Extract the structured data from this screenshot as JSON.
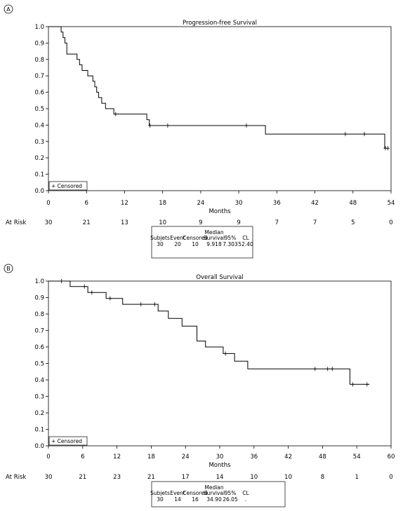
{
  "chart_data": [
    {
      "type": "line",
      "panel_label": "A",
      "title": "Progression-free Survival",
      "xlabel": "Months",
      "ylabel": "",
      "xlim": [
        0,
        54
      ],
      "ylim": [
        0,
        1
      ],
      "xticks": [
        "0",
        "6",
        "12",
        "18",
        "24",
        "30",
        "36",
        "42",
        "48",
        "54"
      ],
      "yticks": [
        "0.0",
        "0.1",
        "0.2",
        "0.3",
        "0.4",
        "0.5",
        "0.6",
        "0.7",
        "0.8",
        "0.9",
        "1.0"
      ],
      "legend": "+ Censored",
      "legend_position": "bottom-left",
      "series": [
        {
          "steps": [
            [
              0,
              1.0
            ],
            [
              2.0,
              0.967
            ],
            [
              2.3,
              0.933
            ],
            [
              2.6,
              0.9
            ],
            [
              2.9,
              0.833
            ],
            [
              4.5,
              0.8
            ],
            [
              4.9,
              0.767
            ],
            [
              5.3,
              0.733
            ],
            [
              6.2,
              0.7
            ],
            [
              7.0,
              0.667
            ],
            [
              7.3,
              0.633
            ],
            [
              7.6,
              0.6
            ],
            [
              7.9,
              0.567
            ],
            [
              8.4,
              0.533
            ],
            [
              9.0,
              0.5
            ],
            [
              10.3,
              0.467
            ],
            [
              15.5,
              0.433
            ],
            [
              15.9,
              0.4
            ],
            [
              15.9,
              0.397
            ],
            [
              34.2,
              0.345
            ],
            [
              53.0,
              0.259
            ]
          ],
          "end_x": 53.6,
          "censored": [
            [
              10.6,
              0.467
            ],
            [
              16.0,
              0.397
            ],
            [
              18.8,
              0.397
            ],
            [
              31.2,
              0.397
            ],
            [
              46.8,
              0.345
            ],
            [
              49.8,
              0.345
            ],
            [
              53.1,
              0.259
            ],
            [
              53.5,
              0.259
            ]
          ]
        }
      ],
      "at_risk_label": "At Risk",
      "at_risk": [
        "30",
        "21",
        "13",
        "10",
        "9",
        "9",
        "7",
        "7",
        "5",
        "0"
      ],
      "summary_table": {
        "header_top": "Median",
        "headers": [
          "Subjets",
          "Event",
          "Censored",
          "Survival",
          "95%",
          "CL"
        ],
        "values": [
          "30",
          "20",
          "10",
          "9.918",
          "7.303",
          "52.40"
        ]
      }
    },
    {
      "type": "line",
      "panel_label": "B",
      "title": "Overall Survival",
      "xlabel": "Months",
      "ylabel": "",
      "xlim": [
        0,
        60
      ],
      "ylim": [
        0,
        1
      ],
      "xticks": [
        "0",
        "6",
        "12",
        "18",
        "24",
        "30",
        "36",
        "42",
        "48",
        "54",
        "60"
      ],
      "yticks": [
        "0.0",
        "0.1",
        "0.2",
        "0.3",
        "0.4",
        "0.5",
        "0.6",
        "0.7",
        "0.8",
        "0.9",
        "1.0"
      ],
      "legend": "+ Censored",
      "legend_position": "bottom-left",
      "series": [
        {
          "steps": [
            [
              0,
              1.0
            ],
            [
              3.8,
              0.967
            ],
            [
              6.9,
              0.931
            ],
            [
              10.1,
              0.895
            ],
            [
              13.0,
              0.859
            ],
            [
              19.2,
              0.818
            ],
            [
              21.0,
              0.773
            ],
            [
              23.4,
              0.727
            ],
            [
              26.0,
              0.636
            ],
            [
              27.5,
              0.6
            ],
            [
              30.6,
              0.56
            ],
            [
              32.6,
              0.514
            ],
            [
              34.9,
              0.467
            ],
            [
              52.8,
              0.373
            ]
          ],
          "end_x": 56.2,
          "censored": [
            [
              2.3,
              1.0
            ],
            [
              6.3,
              0.967
            ],
            [
              7.6,
              0.931
            ],
            [
              10.8,
              0.895
            ],
            [
              16.2,
              0.859
            ],
            [
              18.6,
              0.859
            ],
            [
              31.0,
              0.56
            ],
            [
              46.7,
              0.467
            ],
            [
              48.9,
              0.467
            ],
            [
              49.7,
              0.467
            ],
            [
              53.3,
              0.373
            ],
            [
              55.8,
              0.373
            ]
          ]
        }
      ],
      "at_risk_label": "At Risk",
      "at_risk": [
        "30",
        "21",
        "23",
        "21",
        "17",
        "14",
        "10",
        "10",
        "8",
        "1",
        "0"
      ],
      "summary_table": {
        "header_top": "Median",
        "headers": [
          "Subjets",
          "Event",
          "Censored",
          "Survival",
          "95%",
          "CL"
        ],
        "values": [
          "30",
          "14",
          "16",
          "34.90",
          "26.05",
          "."
        ]
      }
    }
  ]
}
